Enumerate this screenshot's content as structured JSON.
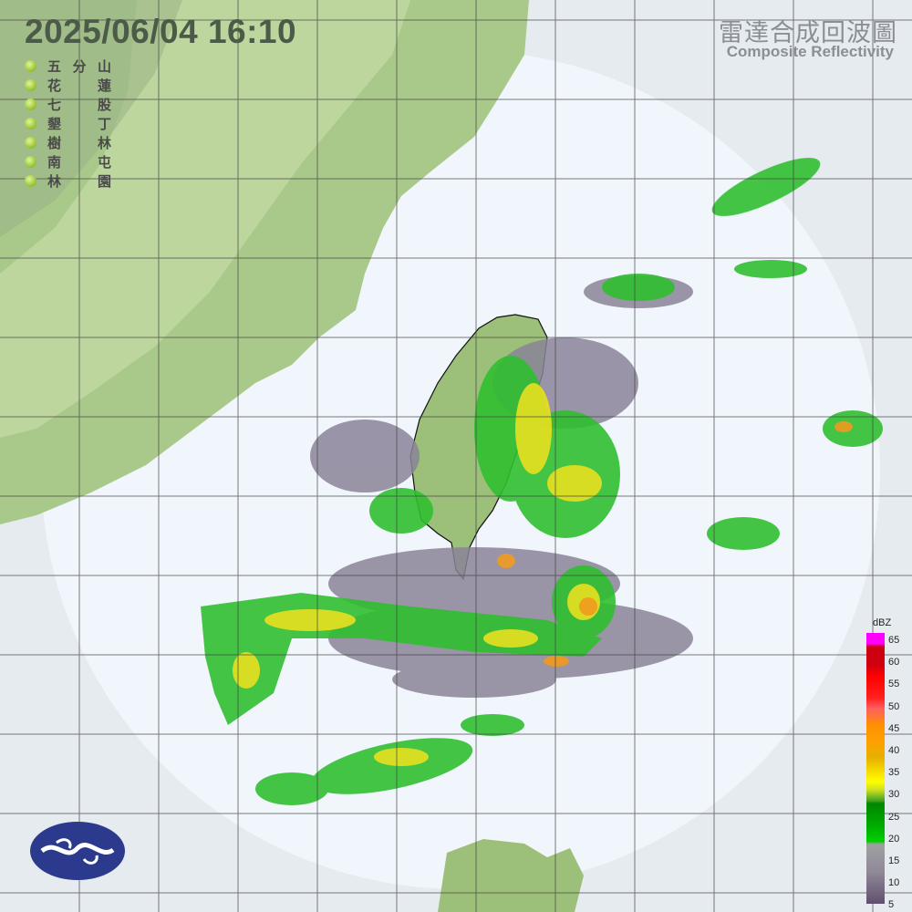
{
  "header": {
    "datetime": "2025/06/04  16:10",
    "title_zh": "雷達合成回波圖",
    "title_en": "Composite Reflectivity"
  },
  "stations": [
    {
      "c1": "五",
      "c2": "分",
      "c3": "山"
    },
    {
      "c1": "花",
      "c2": "",
      "c3": "蓮"
    },
    {
      "c1": "七",
      "c2": "",
      "c3": "股"
    },
    {
      "c1": "墾",
      "c2": "",
      "c3": "丁"
    },
    {
      "c1": "樹",
      "c2": "",
      "c3": "林"
    },
    {
      "c1": "南",
      "c2": "",
      "c3": "屯"
    },
    {
      "c1": "林",
      "c2": "",
      "c3": "園"
    }
  ],
  "colorbar": {
    "unit": "dBZ",
    "ticks": [
      "65",
      "60",
      "55",
      "50",
      "45",
      "40",
      "35",
      "30",
      "25",
      "20",
      "15",
      "10",
      "5"
    ]
  },
  "colors": {
    "ocean": "#f0f6fc",
    "land": "#9cc07a",
    "grid": "#444444",
    "weak_echo": "#8a8398",
    "green_echo": "#2fbf2f",
    "yellow_echo": "#e8e020",
    "orange_echo": "#f09a20"
  }
}
